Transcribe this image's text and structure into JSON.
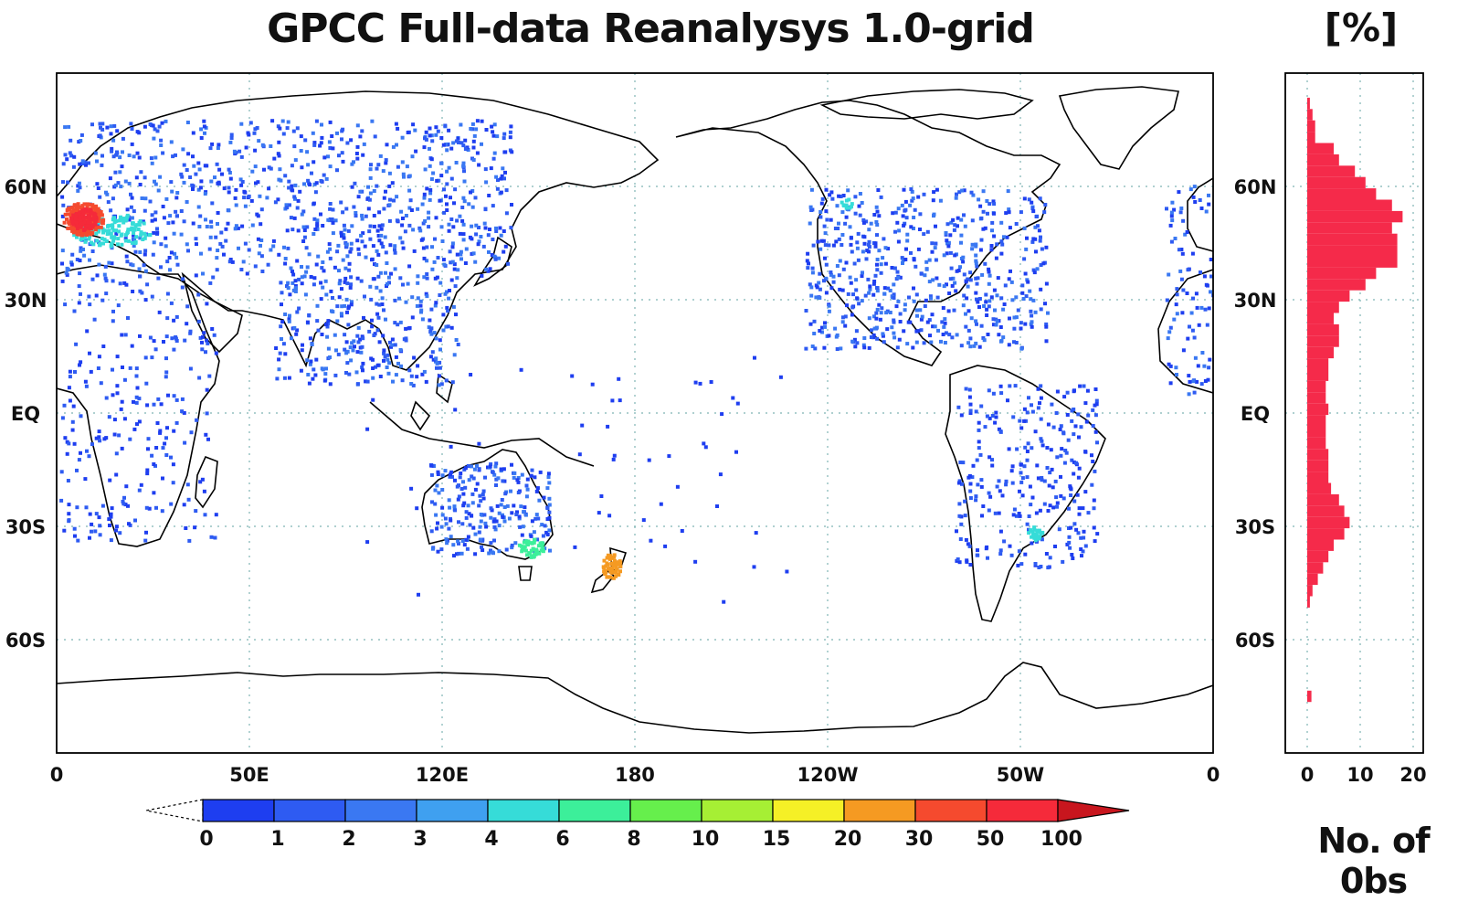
{
  "chart_data": [
    {
      "type": "heatmap",
      "title": "GPCC Full-data Reanalysys 1.0-grid",
      "x_ticks": [
        "0",
        "50E",
        "120E",
        "180",
        "120W",
        "50W",
        "0"
      ],
      "y_ticks": [
        "60N",
        "30N",
        "EQ",
        "30S",
        "60S"
      ],
      "xlim": [
        0,
        360
      ],
      "ylim": [
        -90,
        90
      ],
      "grid": true,
      "colorbar": {
        "labels": [
          "0",
          "1",
          "2",
          "3",
          "4",
          "6",
          "8",
          "10",
          "15",
          "20",
          "30",
          "50",
          "100"
        ],
        "colors": [
          "#1e3ef0",
          "#2e5bf2",
          "#3a78f2",
          "#3fa0f0",
          "#36dcd8",
          "#3cef9a",
          "#66ef4c",
          "#a6ef34",
          "#f5f026",
          "#f59a22",
          "#f54a2e",
          "#f52a3a"
        ],
        "over_color": "#c8161e"
      },
      "hotspots": [
        {
          "region": "Europe",
          "value_class": "50"
        },
        {
          "region": "New Zealand",
          "value_class": "30"
        },
        {
          "region": "SE Australia",
          "value_class": "8"
        },
        {
          "region": "SE South America",
          "value_class": "4"
        }
      ]
    },
    {
      "type": "bar",
      "orientation": "horizontal",
      "title": "[%]",
      "xlabel": "No. of 0bs",
      "x_ticks": [
        "0",
        "10",
        "20"
      ],
      "xlim": [
        0,
        22
      ],
      "y_ticks": [
        "60N",
        "30N",
        "EQ",
        "30S",
        "60S"
      ],
      "color": "#f52a4a",
      "lat": [
        82,
        79,
        76,
        73,
        70,
        67,
        64,
        61,
        58,
        55,
        52,
        49,
        46,
        43,
        40,
        37,
        34,
        31,
        28,
        25,
        22,
        19,
        16,
        13,
        10,
        7,
        4,
        1,
        -2,
        -5,
        -8,
        -11,
        -14,
        -17,
        -20,
        -23,
        -26,
        -29,
        -32,
        -35,
        -38,
        -41,
        -44,
        -47,
        -50,
        -75
      ],
      "values": [
        0.5,
        1,
        1.5,
        1.5,
        5,
        6,
        9,
        11,
        13,
        16,
        18,
        16,
        17,
        17,
        17,
        13,
        11,
        8,
        6,
        5,
        6,
        6,
        5,
        4,
        4,
        3.5,
        3.5,
        4,
        3.5,
        3.5,
        3.5,
        4,
        4,
        4,
        4.5,
        6,
        7,
        8,
        7,
        5,
        4,
        3,
        2,
        1,
        0.5,
        0.8
      ]
    }
  ]
}
